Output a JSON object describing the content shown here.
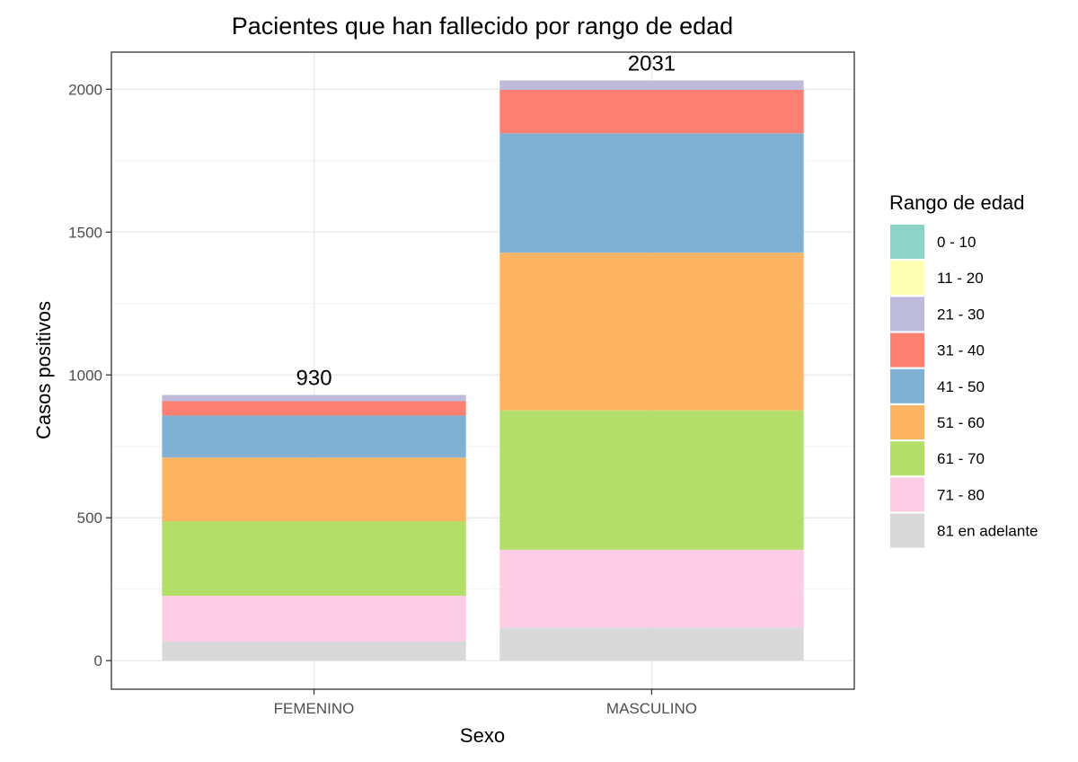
{
  "chart_data": {
    "type": "bar",
    "stacked": true,
    "title": "Pacientes que han fallecido por rango de edad",
    "xlabel": "Sexo",
    "ylabel": "Casos positivos",
    "categories": [
      "FEMENINO",
      "MASCULINO"
    ],
    "ylim": [
      -100,
      2130
    ],
    "yticks": [
      0,
      500,
      1000,
      1500,
      2000
    ],
    "grid": true,
    "legend_title": "Rango de edad",
    "legend_position": "right",
    "totals": [
      930,
      2031
    ],
    "series": [
      {
        "name": "0 - 10",
        "color": "#8DD3C7",
        "values": [
          0,
          0
        ]
      },
      {
        "name": "11 - 20",
        "color": "#FFFFB3",
        "values": [
          0,
          0
        ]
      },
      {
        "name": "21 - 30",
        "color": "#BEBADA",
        "values": [
          22,
          33
        ]
      },
      {
        "name": "31 - 40",
        "color": "#FB8072",
        "values": [
          50,
          152
        ]
      },
      {
        "name": "41 - 50",
        "color": "#80B1D3",
        "values": [
          147,
          418
        ]
      },
      {
        "name": "51 - 60",
        "color": "#FDB462",
        "values": [
          223,
          552
        ]
      },
      {
        "name": "61 - 70",
        "color": "#B3DE69",
        "values": [
          261,
          488
        ]
      },
      {
        "name": "71 - 80",
        "color": "#FCCDE5",
        "values": [
          160,
          272
        ]
      },
      {
        "name": "81 en adelante",
        "color": "#D9D9D9",
        "values": [
          67,
          116
        ]
      }
    ]
  }
}
